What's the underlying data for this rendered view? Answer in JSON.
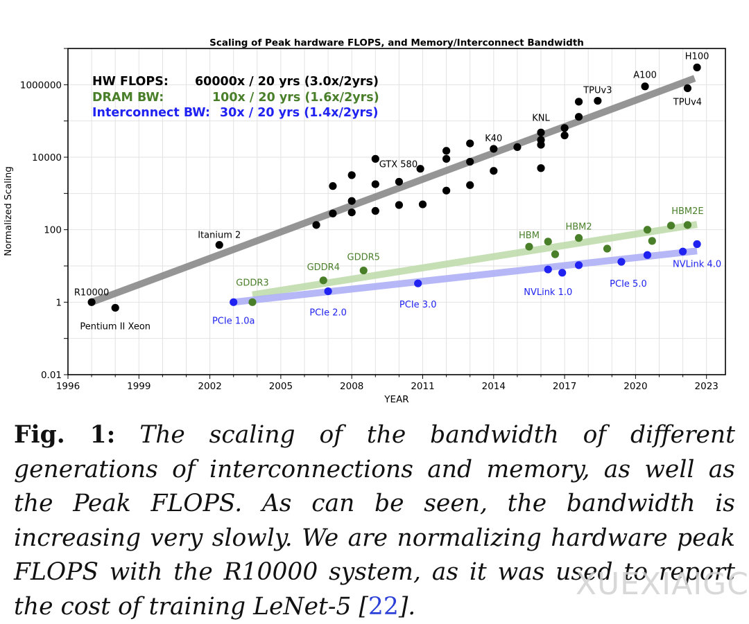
{
  "chart_data": {
    "type": "scatter",
    "title": "Scaling of Peak hardware FLOPS, and Memory/Interconnect Bandwidth",
    "xlabel": "YEAR",
    "ylabel": "Normalized Scaling",
    "xlim": [
      1996,
      2023.8
    ],
    "ylim": [
      0.01,
      10000000
    ],
    "yscale": "log",
    "xticks": [
      1996,
      1999,
      2002,
      2005,
      2008,
      2011,
      2014,
      2017,
      2020,
      2023
    ],
    "yticks": [
      0.01,
      1,
      100,
      10000,
      1000000
    ],
    "ytick_labels": [
      "0.01",
      "1",
      "100",
      "10000",
      "1000000"
    ],
    "grid": true,
    "series": [
      {
        "name": "HW FLOPS",
        "color": "#000000",
        "trend_color": "#8a8a8a",
        "trend": [
          [
            1997,
            1
          ],
          [
            2022.5,
            1500000
          ]
        ],
        "points": [
          {
            "x": 1997.0,
            "y": 1,
            "label": "R10000"
          },
          {
            "x": 1998.0,
            "y": 0.7,
            "label": "Pentium II Xeon"
          },
          {
            "x": 2002.4,
            "y": 38,
            "label": "Itanium 2"
          },
          {
            "x": 2006.5,
            "y": 135
          },
          {
            "x": 2007.2,
            "y": 280
          },
          {
            "x": 2007.2,
            "y": 1600
          },
          {
            "x": 2008.0,
            "y": 620
          },
          {
            "x": 2008.0,
            "y": 300
          },
          {
            "x": 2008.0,
            "y": 3200
          },
          {
            "x": 2009.0,
            "y": 330
          },
          {
            "x": 2009.0,
            "y": 1800
          },
          {
            "x": 2009.0,
            "y": 9000
          },
          {
            "x": 2010.0,
            "y": 480
          },
          {
            "x": 2010.0,
            "y": 2100
          },
          {
            "x": 2010.9,
            "y": 4800,
            "label": "GTX 580"
          },
          {
            "x": 2011.0,
            "y": 500
          },
          {
            "x": 2012.0,
            "y": 1200
          },
          {
            "x": 2012.0,
            "y": 9000
          },
          {
            "x": 2012.0,
            "y": 15000
          },
          {
            "x": 2013.0,
            "y": 1700
          },
          {
            "x": 2013.0,
            "y": 7500
          },
          {
            "x": 2013.0,
            "y": 24000
          },
          {
            "x": 2014.0,
            "y": 4200
          },
          {
            "x": 2014.0,
            "y": 17000,
            "label": "K40"
          },
          {
            "x": 2015.0,
            "y": 19000
          },
          {
            "x": 2016.0,
            "y": 5000
          },
          {
            "x": 2016.0,
            "y": 22000
          },
          {
            "x": 2016.0,
            "y": 30000
          },
          {
            "x": 2016.0,
            "y": 48000,
            "label": "KNL"
          },
          {
            "x": 2017.0,
            "y": 40000
          },
          {
            "x": 2017.0,
            "y": 64000
          },
          {
            "x": 2017.6,
            "y": 130000
          },
          {
            "x": 2017.6,
            "y": 340000
          },
          {
            "x": 2018.4,
            "y": 360000,
            "label": "TPUv3"
          },
          {
            "x": 2020.4,
            "y": 900000,
            "label": "A100"
          },
          {
            "x": 2022.2,
            "y": 800000,
            "label": "TPUv4"
          },
          {
            "x": 2022.6,
            "y": 3000000,
            "label": "H100"
          }
        ]
      },
      {
        "name": "DRAM BW",
        "color": "#4a7f2a",
        "trend_color": "#c0dcae",
        "trend": [
          [
            2003.8,
            1.6
          ],
          [
            2022.6,
            140
          ]
        ],
        "points": [
          {
            "x": 2003.8,
            "y": 1,
            "label": "GDDR3"
          },
          {
            "x": 2006.8,
            "y": 4,
            "label": "GDDR4"
          },
          {
            "x": 2008.5,
            "y": 7.5,
            "label": "GDDR5"
          },
          {
            "x": 2015.5,
            "y": 34,
            "label": "HBM"
          },
          {
            "x": 2016.3,
            "y": 47
          },
          {
            "x": 2016.6,
            "y": 21
          },
          {
            "x": 2017.6,
            "y": 59,
            "label": "HBM2"
          },
          {
            "x": 2018.8,
            "y": 30
          },
          {
            "x": 2020.5,
            "y": 100
          },
          {
            "x": 2020.7,
            "y": 49
          },
          {
            "x": 2021.5,
            "y": 130
          },
          {
            "x": 2022.2,
            "y": 135,
            "label": "HBM2E"
          }
        ]
      },
      {
        "name": "Interconnect BW",
        "color": "#1f22f0",
        "trend_color": "#aeb0f7",
        "trend": [
          [
            2003,
            1
          ],
          [
            2022.6,
            26
          ]
        ],
        "points": [
          {
            "x": 2003.0,
            "y": 1,
            "label": "PCIe 1.0a"
          },
          {
            "x": 2007.0,
            "y": 2,
            "label": "PCIe 2.0"
          },
          {
            "x": 2010.8,
            "y": 3.3,
            "label": "PCIe 3.0"
          },
          {
            "x": 2016.3,
            "y": 8,
            "label": "NVLink 1.0"
          },
          {
            "x": 2016.9,
            "y": 6.5
          },
          {
            "x": 2017.6,
            "y": 10.5
          },
          {
            "x": 2019.4,
            "y": 13,
            "label": "PCIe 5.0"
          },
          {
            "x": 2020.5,
            "y": 20
          },
          {
            "x": 2022.0,
            "y": 25
          },
          {
            "x": 2022.6,
            "y": 40,
            "label": "NVLink 4.0"
          }
        ]
      }
    ],
    "legend": {
      "placement": "top-left",
      "entries": [
        {
          "name": "HW FLOPS:",
          "value": "60000x / 20 yrs (3.0x/2yrs)",
          "color": "#000000"
        },
        {
          "name": "DRAM BW:",
          "value": "100x / 20 yrs (1.6x/2yrs)",
          "color": "#4a7f2a"
        },
        {
          "name": "Interconnect BW:",
          "value": "30x / 20 yrs (1.4x/2yrs)",
          "color": "#1f22f0"
        }
      ]
    }
  },
  "caption": {
    "label": "Fig. 1:",
    "text": "The scaling of the bandwidth of different generations of interconnections and memory, as well as the Peak FLOPS. As can be seen, the bandwidth is increasing very slowly. We are normalizing hardware peak FLOPS with the R10000 system, as it was used to report the cost of training LeNet-5 [",
    "citation": "22",
    "text_end": "]."
  },
  "watermark": "XUEXIAIGC"
}
